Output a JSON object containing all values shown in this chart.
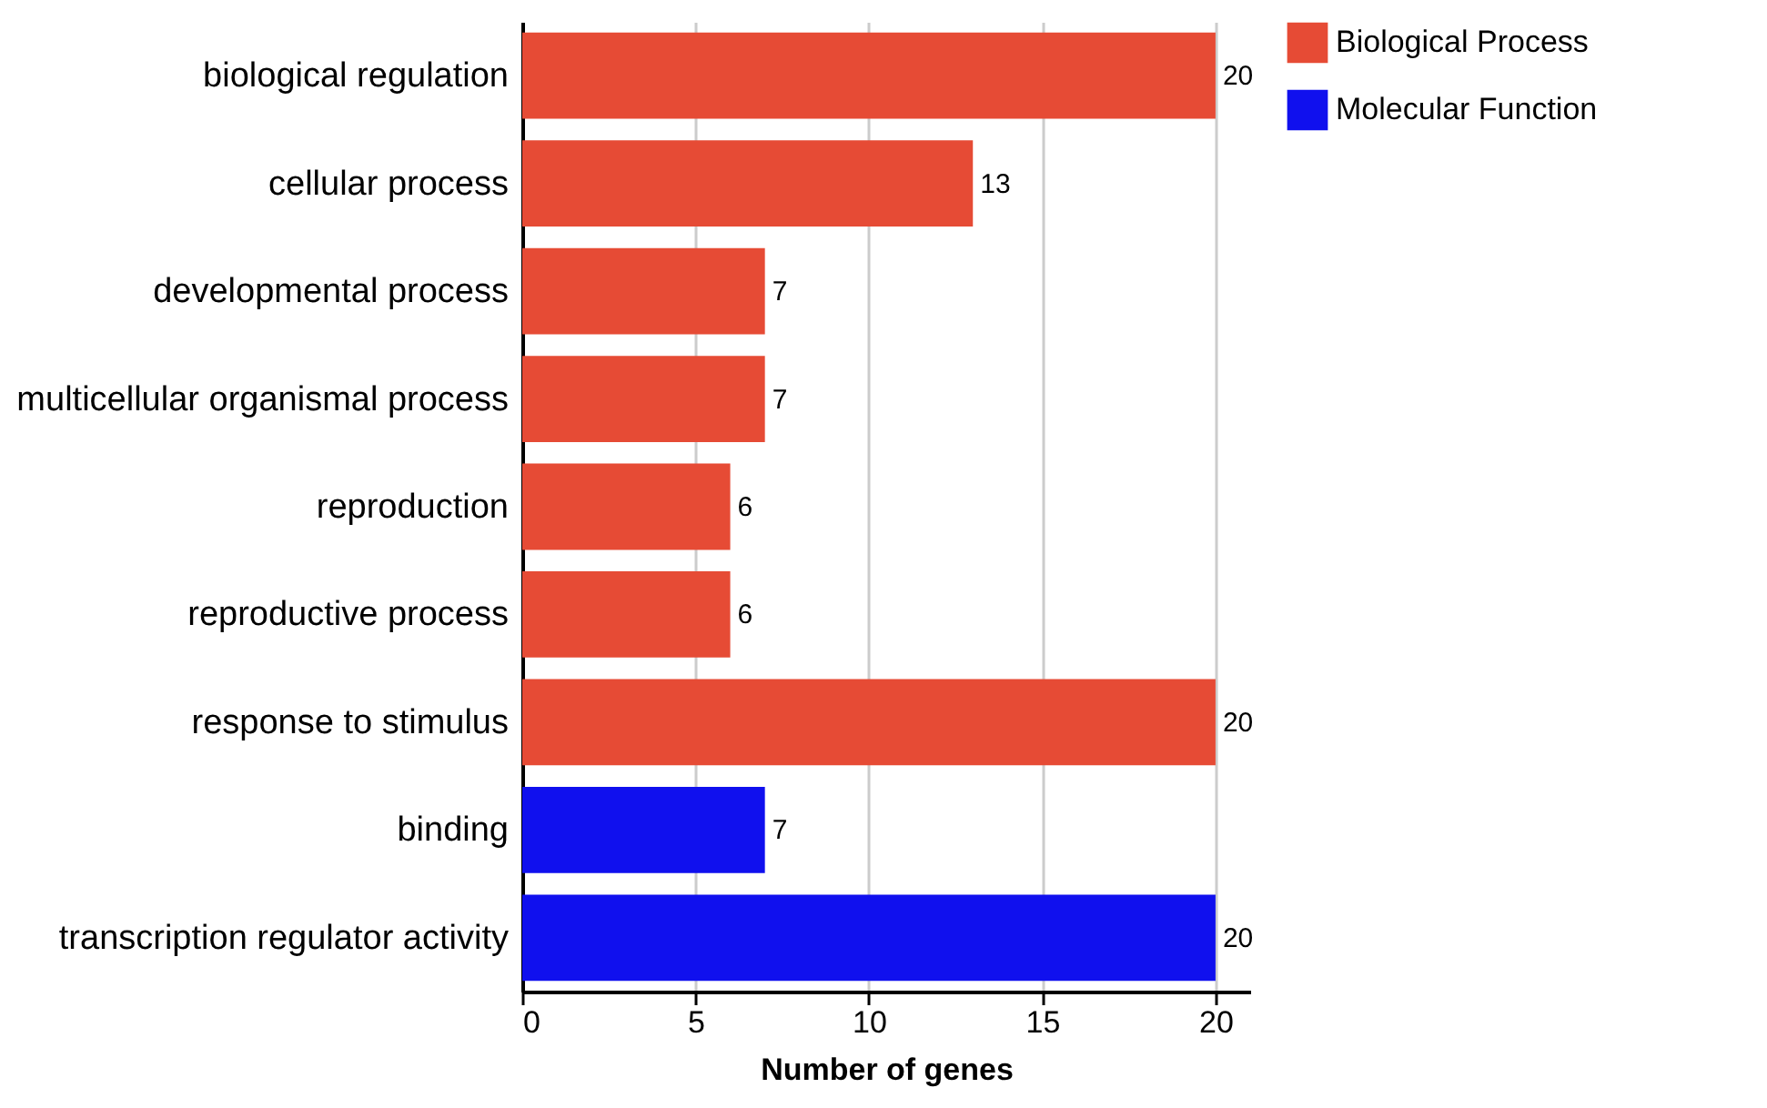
{
  "chart_data": {
    "type": "bar",
    "orientation": "horizontal",
    "xlabel": "Number of genes",
    "categories": [
      "biological regulation",
      "cellular process",
      "developmental process",
      "multicellular organismal process",
      "reproduction",
      "reproductive process",
      "response to stimulus",
      "binding",
      "transcription regulator activity"
    ],
    "series": [
      {
        "name": "Biological Process",
        "color": "#e64b35",
        "values": [
          20,
          13,
          7,
          7,
          6,
          6,
          20,
          null,
          null
        ]
      },
      {
        "name": "Molecular Function",
        "color": "#1010ee",
        "values": [
          null,
          null,
          null,
          null,
          null,
          null,
          null,
          7,
          20
        ]
      }
    ],
    "xlim": [
      0,
      21
    ],
    "xticks": [
      0,
      5,
      10,
      15,
      20
    ],
    "grid": "x",
    "legend": "right",
    "data_labels": true
  }
}
